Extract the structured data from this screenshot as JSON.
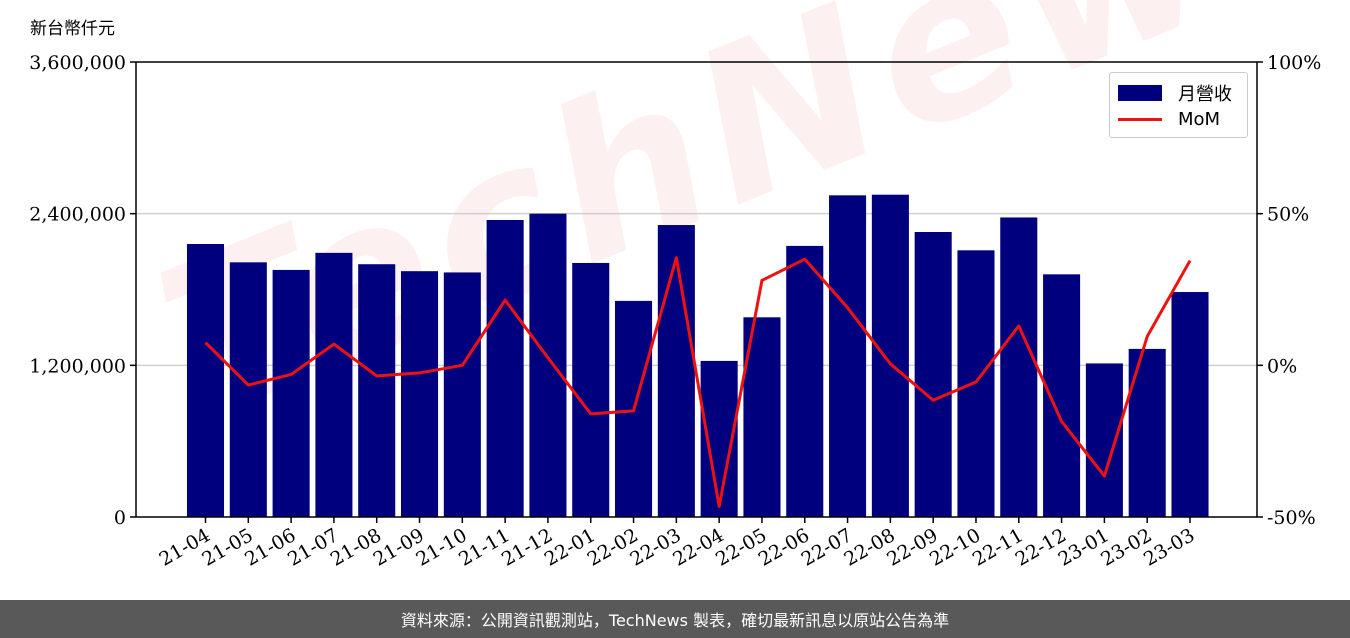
{
  "watermark_text": "TechNews",
  "unit_label": "新台幣仟元",
  "footer_text": "資料來源：公開資訊觀測站，TechNews 製表，確切最新訊息以原站公告為準",
  "colors": {
    "bar": "#00007f",
    "line": "#ee1111",
    "grid": "#d0d0d0",
    "footer_bg": "#595959"
  },
  "chart_data": {
    "type": "bar",
    "categories": [
      "21-04",
      "21-05",
      "21-06",
      "21-07",
      "21-08",
      "21-09",
      "21-10",
      "21-11",
      "21-12",
      "22-01",
      "22-02",
      "22-03",
      "22-04",
      "22-05",
      "22-06",
      "22-07",
      "22-08",
      "22-09",
      "22-10",
      "22-11",
      "22-12",
      "23-01",
      "23-02",
      "23-03"
    ],
    "series": [
      {
        "name": "月營收",
        "type": "bar",
        "axis": "left",
        "values": [
          2160000,
          2015000,
          1955000,
          2090000,
          2000000,
          1945000,
          1935000,
          2350000,
          2400000,
          2010000,
          1710000,
          2310000,
          1235000,
          1580000,
          2145000,
          2545000,
          2550000,
          2255000,
          2110000,
          2370000,
          1920000,
          1215000,
          1330000,
          1780000
        ]
      },
      {
        "name": "MoM",
        "type": "line",
        "axis": "right",
        "values": [
          7.5,
          -6.5,
          -3,
          7,
          -3.5,
          -2.5,
          0,
          21.5,
          2.5,
          -16,
          -15,
          35.5,
          -46.5,
          28,
          35,
          19,
          0.5,
          -11.5,
          -5.5,
          13,
          -18.5,
          -36.5,
          9.5,
          34.5
        ]
      }
    ],
    "y_left": {
      "min": 0,
      "max": 3600000,
      "ticks": [
        0,
        1200000,
        2400000,
        3600000
      ],
      "tick_labels": [
        "0",
        "1,200,000",
        "2,400,000",
        "3,600,000"
      ]
    },
    "y_right": {
      "min": -50,
      "max": 100,
      "ticks": [
        -50,
        0,
        50,
        100
      ],
      "tick_labels": [
        "-50%",
        "0%",
        "50%",
        "100%"
      ]
    },
    "grid": "horizontal",
    "legend_position": "top-right"
  }
}
